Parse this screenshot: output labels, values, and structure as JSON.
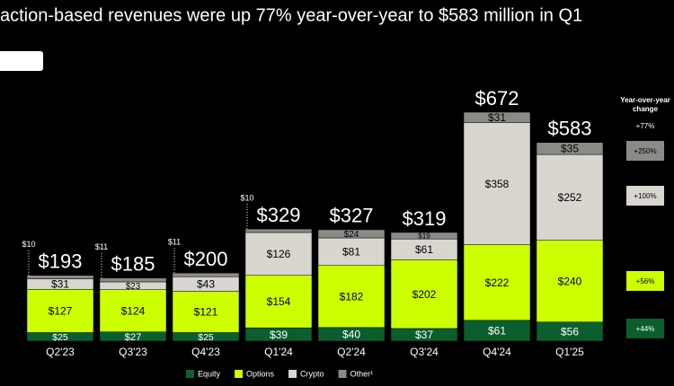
{
  "chart_data": {
    "type": "stacked-bar",
    "title": "action-based revenues were up 77% year-over-year to $583 million in Q1",
    "categories": [
      "Q2'23",
      "Q3'23",
      "Q4'23",
      "Q1'24",
      "Q2'24",
      "Q3'24",
      "Q4'24",
      "Q1'25"
    ],
    "series": [
      {
        "name": "Equity",
        "color": "#0b5e2e",
        "values": [
          25,
          27,
          25,
          39,
          40,
          37,
          61,
          56
        ],
        "value_labels": [
          "$25",
          "$27",
          "$25",
          "$39",
          "$40",
          "$37",
          "$61",
          "$56"
        ],
        "yoy": "+44%"
      },
      {
        "name": "Options",
        "color": "#ccff00",
        "values": [
          127,
          124,
          121,
          154,
          182,
          202,
          222,
          240
        ],
        "value_labels": [
          "$127",
          "$124",
          "$121",
          "$154",
          "$182",
          "$202",
          "$222",
          "$240"
        ],
        "yoy": "+56%"
      },
      {
        "name": "Crypto",
        "color": "#d9d6d0",
        "values": [
          31,
          23,
          43,
          126,
          81,
          61,
          358,
          252
        ],
        "value_labels": [
          "$31",
          "$23",
          "$43",
          "$126",
          "$81",
          "$61",
          "$358",
          "$252"
        ],
        "yoy": "+100%"
      },
      {
        "name": "Other¹",
        "color": "#8a8a87",
        "values": [
          10,
          11,
          11,
          10,
          24,
          19,
          31,
          35
        ],
        "value_labels": [
          "$10",
          "$11",
          "$11",
          "$10",
          "$24",
          "$19",
          "$31",
          "$35"
        ],
        "yoy": "+250%"
      }
    ],
    "totals": {
      "values": [
        193,
        185,
        200,
        329,
        327,
        319,
        672,
        583
      ],
      "value_labels": [
        "$193",
        "$185",
        "$200",
        "$329",
        "$327",
        "$319",
        "$672",
        "$583"
      ],
      "yoy": "+77%"
    },
    "yoy_title": "Year-over-year change"
  }
}
